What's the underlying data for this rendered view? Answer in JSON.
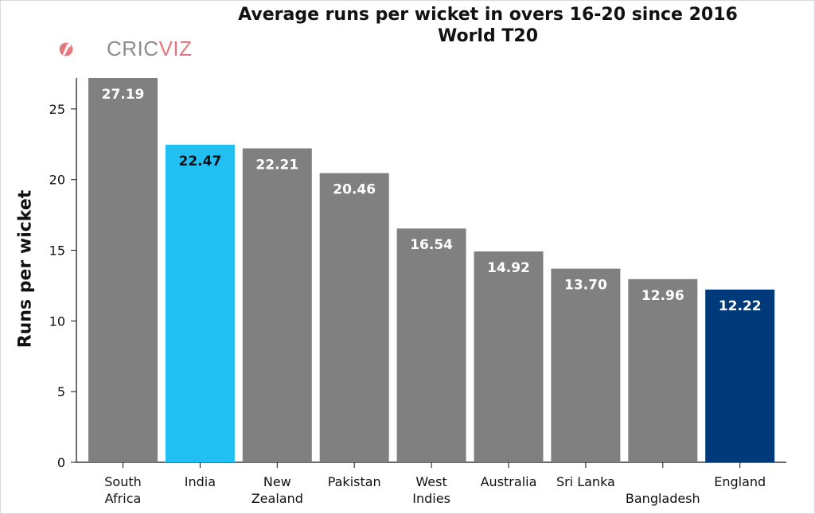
{
  "chart_data": {
    "type": "bar",
    "title": "Average runs per wicket in overs 16-20 since 2016",
    "subtitle": "World T20",
    "ylabel": "Runs per wicket",
    "xlabel": "",
    "ylim": [
      0,
      27.19
    ],
    "yticks": [
      0,
      5,
      10,
      15,
      20,
      25
    ],
    "grid": false,
    "categories": [
      [
        "South",
        "Africa"
      ],
      [
        "India"
      ],
      [
        "New",
        "Zealand"
      ],
      [
        "Pakistan"
      ],
      [
        "West",
        "Indies"
      ],
      [
        "Australia"
      ],
      [
        "Sri Lanka"
      ],
      [
        "",
        "Bangladesh"
      ],
      [
        "England"
      ]
    ],
    "values": [
      27.19,
      22.47,
      22.21,
      20.46,
      16.54,
      14.92,
      13.7,
      12.96,
      12.22
    ],
    "value_labels": [
      "27.19",
      "22.47",
      "22.21",
      "20.46",
      "16.54",
      "14.92",
      "13.70",
      "12.96",
      "12.22"
    ],
    "bar_colors": [
      "#808080",
      "#22bff2",
      "#808080",
      "#808080",
      "#808080",
      "#808080",
      "#808080",
      "#808080",
      "#003a7a"
    ],
    "label_colors": [
      "#ffffff",
      "#111111",
      "#ffffff",
      "#ffffff",
      "#ffffff",
      "#ffffff",
      "#ffffff",
      "#ffffff",
      "#ffffff"
    ]
  },
  "logo": {
    "text_a": "CRIC",
    "text_b": "VIZ",
    "color_a": "#8c8c8c",
    "color_b": "#e07a80",
    "icon": "cricket-bat-ball-icon"
  }
}
